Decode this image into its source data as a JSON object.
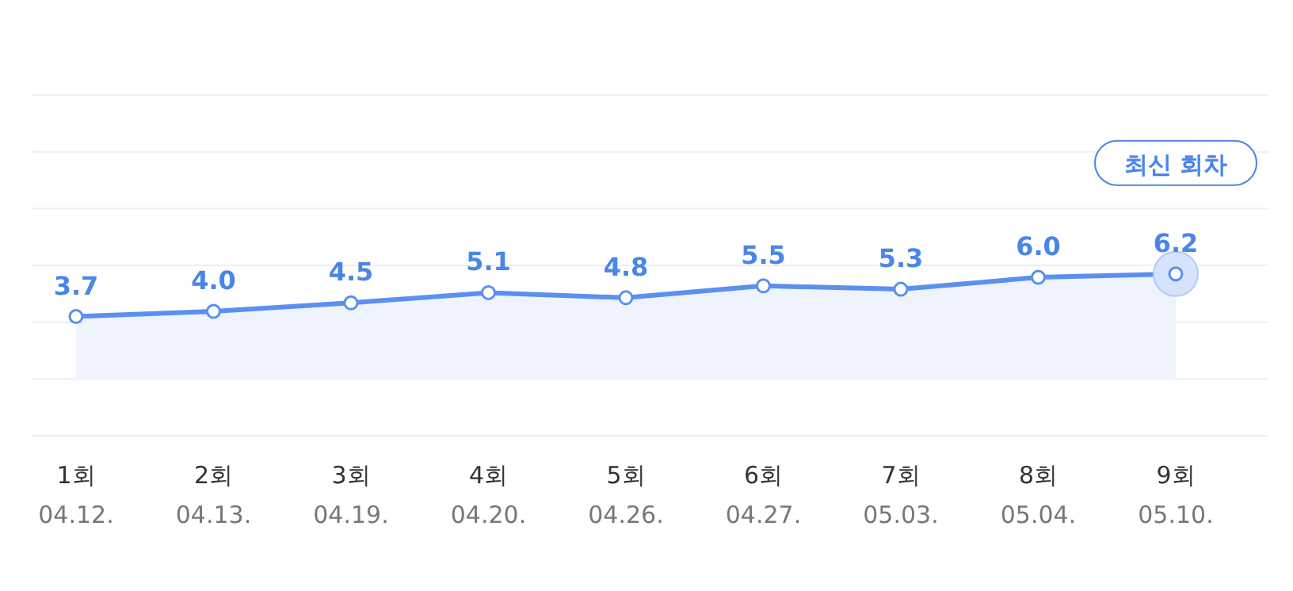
{
  "chart_data": {
    "type": "area",
    "categories": [
      "1회\n04.12.",
      "2회\n04.13.",
      "3회\n04.19.",
      "4회\n04.20.",
      "5회\n04.26.",
      "6회\n04.27.",
      "7회\n05.03.",
      "8회\n05.04.",
      "9회\n05.10."
    ],
    "values": [
      3.7,
      4.0,
      4.5,
      5.1,
      4.8,
      5.5,
      5.3,
      6.0,
      6.2
    ],
    "value_labels": [
      "3.7",
      "4.0",
      "4.5",
      "5.1",
      "4.8",
      "5.5",
      "5.3",
      "6.0",
      "6.2"
    ],
    "color": "#5b8ff0",
    "ylim": [
      -3.3,
      16.7
    ],
    "grid": "y",
    "marker": "circle",
    "annotations": [
      "최신 회차"
    ]
  }
}
